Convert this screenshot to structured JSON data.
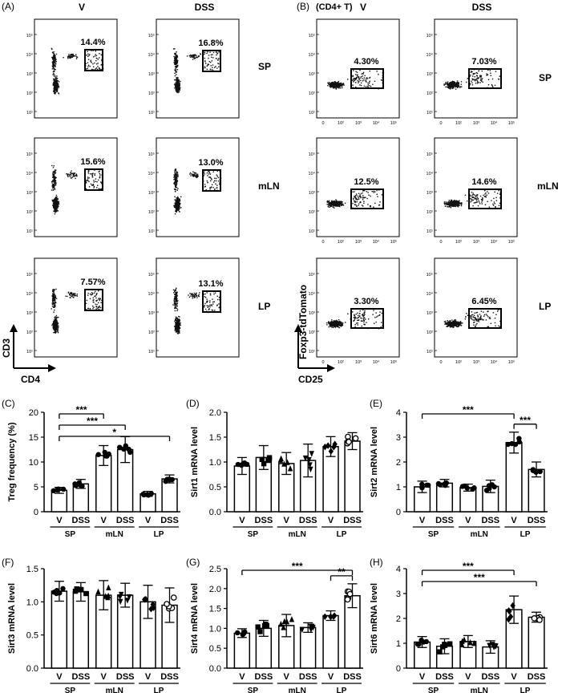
{
  "flow_A": {
    "panel_label": "(A)",
    "columns": [
      "V",
      "DSS"
    ],
    "rows": [
      {
        "tissue": "SP",
        "percents": [
          "14.4%",
          "16.8%"
        ]
      },
      {
        "tissue": "mLN",
        "percents": [
          "15.6%",
          "13.0%"
        ]
      },
      {
        "tissue": "LP",
        "percents": [
          "7.57%",
          "13.1%"
        ]
      }
    ],
    "x_axis_label": "CD4",
    "y_axis_label": "CD3"
  },
  "flow_B": {
    "panel_label": "(B)",
    "subtitle": "(CD4+ T)",
    "columns": [
      "V",
      "DSS"
    ],
    "rows": [
      {
        "tissue": "SP",
        "percents": [
          "4.30%",
          "7.03%"
        ]
      },
      {
        "tissue": "mLN",
        "percents": [
          "12.5%",
          "14.6%"
        ]
      },
      {
        "tissue": "LP",
        "percents": [
          "3.30%",
          "6.45%"
        ]
      }
    ],
    "x_axis_label": "CD25",
    "y_axis_label": "Foxp3-tdTomato"
  },
  "flow_tick_labels": [
    "10¹",
    "10²",
    "10³",
    "10⁴",
    "10⁵"
  ],
  "chart_data": [
    {
      "panel": "(C)",
      "type": "bar",
      "ylabel": "Treg frequency (%)",
      "ylim": [
        0,
        20
      ],
      "yticks": [
        0,
        5,
        10,
        15,
        20
      ],
      "categories": [
        "V",
        "DSS",
        "V",
        "DSS",
        "V",
        "DSS"
      ],
      "groups": [
        "SP",
        "mLN",
        "LP"
      ],
      "values": [
        4.3,
        5.6,
        11.3,
        12.5,
        3.6,
        6.6
      ],
      "errors": [
        0.6,
        0.9,
        2.0,
        2.6,
        0.5,
        0.8
      ],
      "marker": "circle",
      "significance": [
        {
          "from": 0,
          "to": 2,
          "label": "***"
        },
        {
          "from": 0,
          "to": 3,
          "label": "***"
        },
        {
          "from": 0,
          "to": 5,
          "label": "*"
        }
      ]
    },
    {
      "panel": "(D)",
      "type": "bar",
      "ylabel": "Sirt1 mRNA level",
      "ylim": [
        0,
        2.0
      ],
      "yticks": [
        0,
        0.5,
        1.0,
        1.5,
        2.0
      ],
      "categories": [
        "V",
        "DSS",
        "V",
        "DSS",
        "V",
        "DSS"
      ],
      "groups": [
        "SP",
        "mLN",
        "LP"
      ],
      "values": [
        0.92,
        1.09,
        0.97,
        1.03,
        1.31,
        1.42
      ],
      "errors": [
        0.17,
        0.24,
        0.22,
        0.33,
        0.2,
        0.17
      ],
      "marker": "mixed",
      "significance": []
    },
    {
      "panel": "(E)",
      "type": "bar",
      "ylabel": "Sirt2 mRNA level",
      "ylim": [
        0,
        4
      ],
      "yticks": [
        0,
        1,
        2,
        3,
        4
      ],
      "categories": [
        "V",
        "DSS",
        "V",
        "DSS",
        "V",
        "DSS"
      ],
      "groups": [
        "SP",
        "mLN",
        "LP"
      ],
      "values": [
        1.0,
        1.15,
        0.97,
        1.02,
        2.78,
        1.7
      ],
      "errors": [
        0.23,
        0.15,
        0.14,
        0.25,
        0.42,
        0.3
      ],
      "marker": "circle",
      "significance": [
        {
          "from": 0,
          "to": 4,
          "label": "***"
        },
        {
          "from": 4,
          "to": 5,
          "label": "***"
        }
      ]
    },
    {
      "panel": "(F)",
      "type": "bar",
      "ylabel": "Sirt3 mRNA level",
      "ylim": [
        0,
        1.5
      ],
      "yticks": [
        0,
        0.5,
        1.0,
        1.5
      ],
      "categories": [
        "V",
        "DSS",
        "V",
        "DSS",
        "V",
        "DSS"
      ],
      "groups": [
        "SP",
        "mLN",
        "LP"
      ],
      "values": [
        1.16,
        1.15,
        1.1,
        1.1,
        1.0,
        0.95
      ],
      "errors": [
        0.15,
        0.14,
        0.22,
        0.18,
        0.25,
        0.26
      ],
      "marker": "mixed",
      "significance": []
    },
    {
      "panel": "(G)",
      "type": "bar",
      "ylabel": "Sirt4 mRNA level",
      "ylim": [
        0,
        2.5
      ],
      "yticks": [
        0,
        0.5,
        1.0,
        1.5,
        2.0,
        2.5
      ],
      "categories": [
        "V",
        "DSS",
        "V",
        "DSS",
        "V",
        "DSS"
      ],
      "groups": [
        "SP",
        "mLN",
        "LP"
      ],
      "values": [
        0.88,
        1.0,
        1.07,
        1.02,
        1.32,
        1.82
      ],
      "errors": [
        0.11,
        0.2,
        0.28,
        0.12,
        0.12,
        0.3
      ],
      "marker": "mixed",
      "significance": [
        {
          "from": 0,
          "to": 5,
          "label": "***"
        },
        {
          "from": 4,
          "to": 5,
          "label": "**"
        }
      ]
    },
    {
      "panel": "(H)",
      "type": "bar",
      "ylabel": "Sirt6 mRNA level",
      "ylim": [
        0,
        4
      ],
      "yticks": [
        0,
        1,
        2,
        3,
        4
      ],
      "categories": [
        "V",
        "DSS",
        "V",
        "DSS",
        "V",
        "DSS"
      ],
      "groups": [
        "SP",
        "mLN",
        "LP"
      ],
      "values": [
        1.05,
        0.88,
        1.07,
        0.85,
        2.35,
        2.05
      ],
      "errors": [
        0.22,
        0.3,
        0.24,
        0.25,
        0.55,
        0.2
      ],
      "marker": "mixed",
      "significance": [
        {
          "from": 0,
          "to": 4,
          "label": "***"
        },
        {
          "from": 0,
          "to": 5,
          "label": "***"
        }
      ]
    }
  ]
}
